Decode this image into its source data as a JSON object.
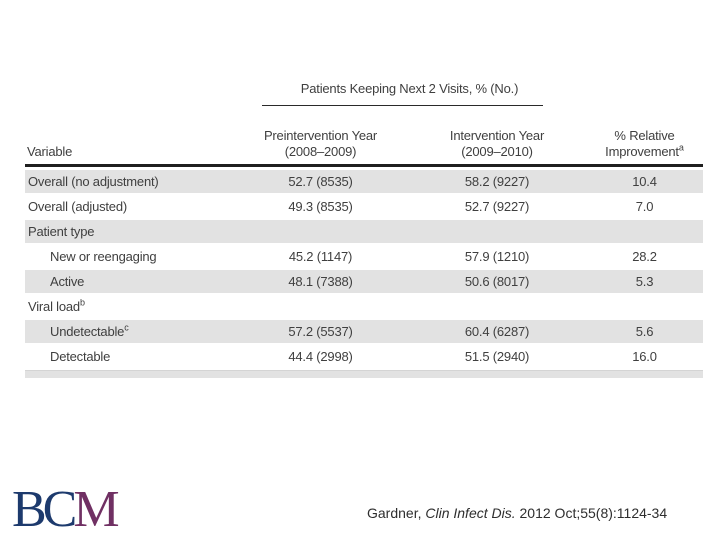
{
  "table": {
    "spanner": "Patients Keeping Next 2 Visits, % (No.)",
    "columns": {
      "variable": "Variable",
      "pre_line1": "Preintervention Year",
      "pre_line2": "(2008–2009)",
      "post_line1": "Intervention Year",
      "post_line2": "(2009–2010)",
      "imp_line1": "% Relative",
      "imp_line2": "Improvement",
      "imp_sup": "a"
    },
    "rows": [
      {
        "variable": "Overall (no adjustment)",
        "sup": "",
        "pre": "52.7 (8535)",
        "post": "58.2 (9227)",
        "improvement": "10.4"
      },
      {
        "variable": "Overall (adjusted)",
        "sup": "",
        "pre": "49.3 (8535)",
        "post": "52.7 (9227)",
        "improvement": "7.0"
      },
      {
        "variable": "Patient type",
        "sup": "",
        "pre": "",
        "post": "",
        "improvement": ""
      },
      {
        "variable": "New or reengaging",
        "sup": "",
        "pre": "45.2 (1147)",
        "post": "57.9 (1210)",
        "improvement": "28.2"
      },
      {
        "variable": "Active",
        "sup": "",
        "pre": "48.1 (7388)",
        "post": "50.6 (8017)",
        "improvement": "5.3"
      },
      {
        "variable": "Viral load",
        "sup": "b",
        "pre": "",
        "post": "",
        "improvement": ""
      },
      {
        "variable": "Undetectable",
        "sup": "c",
        "pre": "57.2 (5537)",
        "post": "60.4 (6287)",
        "improvement": "5.6"
      },
      {
        "variable": "Detectable",
        "sup": "",
        "pre": "44.4 (2998)",
        "post": "51.5 (2940)",
        "improvement": "16.0"
      }
    ]
  },
  "footer": {
    "citation_author": "Gardner, ",
    "citation_journal": "Clin Infect Dis.",
    "citation_rest": " 2012 Oct;55(8):1124-34"
  },
  "logo": {
    "letters_blue": "BC",
    "letter_purple": "M"
  },
  "colors": {
    "row_shade": "#e2e2e2",
    "table_text": "#3f3f3f",
    "logo_blue": "#1d3a6d",
    "logo_purple": "#703063"
  }
}
